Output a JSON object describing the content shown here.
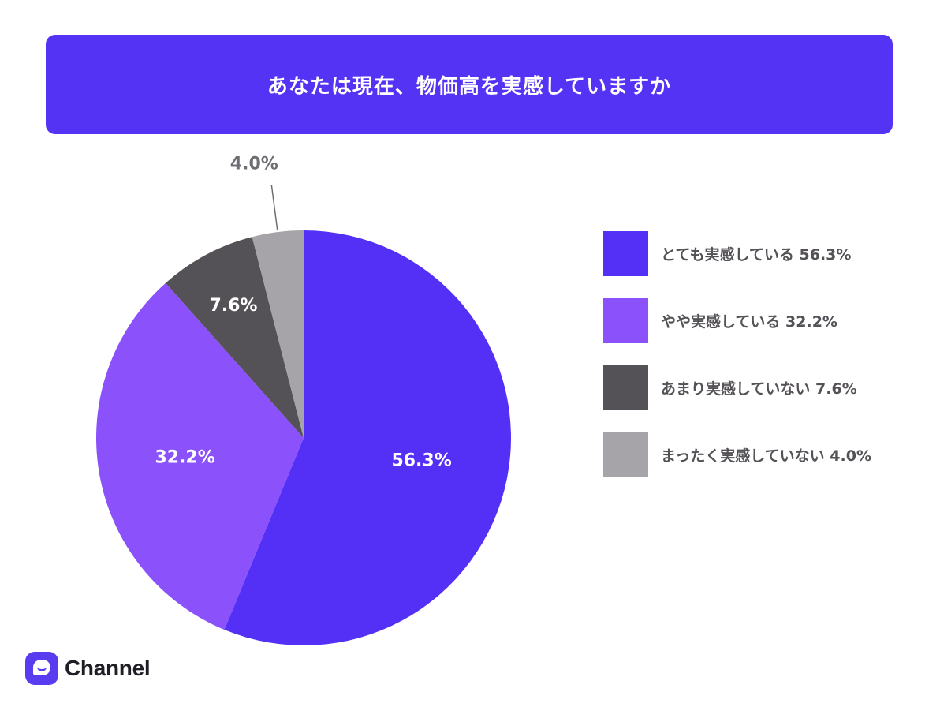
{
  "header": {
    "title": "あなたは現在、物価高を実感していますか"
  },
  "colors": {
    "header_bg": "#5533f5",
    "slice_colors": [
      "#5430f6",
      "#8b51fb",
      "#555257",
      "#a6a4a8"
    ],
    "label_inside": "#ffffff",
    "label_outside": "#6f6d72",
    "logo": "#5a3cf0"
  },
  "chart_data": {
    "type": "pie",
    "categories": [
      "とても実感している",
      "やや実感している",
      "あまり実感していない",
      "まったく実感していない"
    ],
    "values": [
      56.3,
      32.2,
      7.6,
      4.0
    ],
    "data_labels": [
      "56.3%",
      "32.2%",
      "7.6%",
      "4.0%"
    ],
    "legend_labels": [
      "とても実感している 56.3%",
      "やや実感している 32.2%",
      "あまり実感していない 7.6%",
      "まったく実感していない 4.0%"
    ],
    "legend_position": "right",
    "start_angle": "12 o'clock",
    "direction": "clockwise"
  },
  "brand": {
    "name": "Channel",
    "icon": "chat-bubble-icon"
  }
}
